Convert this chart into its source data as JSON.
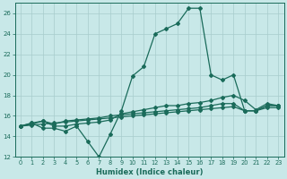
{
  "x": [
    0,
    1,
    2,
    3,
    4,
    5,
    6,
    7,
    8,
    9,
    10,
    11,
    12,
    13,
    14,
    15,
    16,
    17,
    18,
    19,
    20,
    21,
    22,
    23
  ],
  "line1": [
    15.0,
    15.3,
    14.8,
    14.8,
    14.5,
    15.0,
    13.5,
    12.0,
    14.2,
    16.5,
    19.9,
    20.8,
    24.0,
    24.5,
    25.0,
    26.5,
    26.5,
    20.0,
    19.5,
    20.0,
    16.5,
    16.5,
    17.0,
    17.0
  ],
  "line2": [
    15.0,
    15.3,
    15.5,
    15.0,
    15.0,
    15.2,
    15.3,
    15.4,
    15.6,
    16.2,
    16.4,
    16.6,
    16.8,
    17.0,
    17.0,
    17.2,
    17.3,
    17.5,
    17.8,
    18.0,
    17.5,
    16.6,
    17.2,
    17.0
  ],
  "line3": [
    15.0,
    15.2,
    15.5,
    15.2,
    15.5,
    15.6,
    15.7,
    15.8,
    16.0,
    16.1,
    16.2,
    16.3,
    16.4,
    16.5,
    16.6,
    16.7,
    16.8,
    17.0,
    17.2,
    17.2,
    16.5,
    16.5,
    17.0,
    17.0
  ],
  "line4": [
    15.0,
    15.1,
    15.2,
    15.3,
    15.4,
    15.5,
    15.6,
    15.7,
    15.8,
    15.9,
    16.0,
    16.1,
    16.2,
    16.3,
    16.4,
    16.5,
    16.6,
    16.7,
    16.8,
    16.9,
    16.5,
    16.5,
    16.8,
    16.8
  ],
  "bg_color": "#c8e8e8",
  "grid_color": "#a8cccc",
  "line_color": "#1a6b5a",
  "xlabel": "Humidex (Indice chaleur)",
  "ylim": [
    12,
    27
  ],
  "xlim": [
    -0.5,
    23.5
  ],
  "yticks": [
    12,
    14,
    16,
    18,
    20,
    22,
    24,
    26
  ],
  "xticks": [
    0,
    1,
    2,
    3,
    4,
    5,
    6,
    7,
    8,
    9,
    10,
    11,
    12,
    13,
    14,
    15,
    16,
    17,
    18,
    19,
    20,
    21,
    22,
    23
  ],
  "marker_size": 2.0,
  "line_width": 0.9
}
